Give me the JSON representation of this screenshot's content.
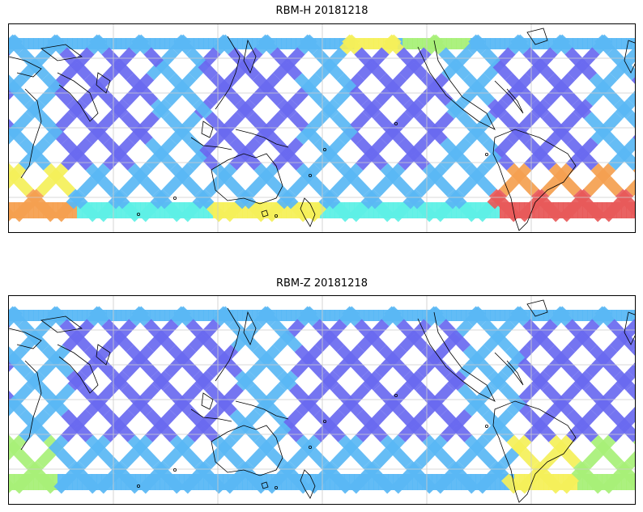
{
  "panels": [
    {
      "title": "RBM-H 20181218",
      "variant": "H"
    },
    {
      "title": "RBM-Z 20181218",
      "variant": "Z"
    }
  ],
  "colormap": "jet",
  "colors": {
    "swath_low": "#6a6af0",
    "swath_mid": "#5ab8f5",
    "swath_cyan": "#5ef0e6",
    "swath_green": "#a8f078",
    "swath_yellow": "#f5f05a",
    "swath_orange": "#f5a050",
    "swath_high": "#e85a5a",
    "coastline": "#000000",
    "grid": "#cccccc"
  }
}
